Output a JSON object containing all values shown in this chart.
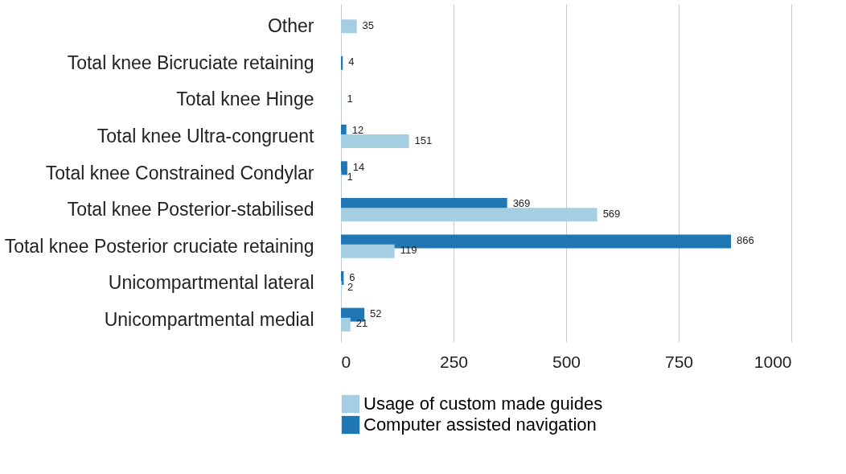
{
  "chart_data": {
    "type": "bar",
    "orientation": "horizontal",
    "categories": [
      "Other",
      "Total knee Bicruciate retaining",
      "Total knee Hinge",
      "Total knee Ultra-congruent",
      "Total knee Constrained Condylar",
      "Total knee Posterior-stabilised",
      "Total knee Posterior cruciate retaining",
      "Unicompartmental lateral",
      "Unicompartmental medial"
    ],
    "series": [
      {
        "name": "Usage of custom made guides",
        "color": "#a6cee3",
        "values": [
          35,
          null,
          1,
          151,
          1,
          569,
          119,
          2,
          21
        ]
      },
      {
        "name": "Computer assisted navigation",
        "color": "#1f78b4",
        "values": [
          null,
          4,
          null,
          12,
          14,
          369,
          866,
          6,
          52
        ]
      }
    ],
    "xlim": [
      0,
      1000
    ],
    "xticks": [
      0,
      250,
      500,
      750,
      {
        "value": 1000,
        "label": "1000"
      }
    ],
    "grid": "x",
    "legend": "bottom",
    "data_labels": true
  }
}
